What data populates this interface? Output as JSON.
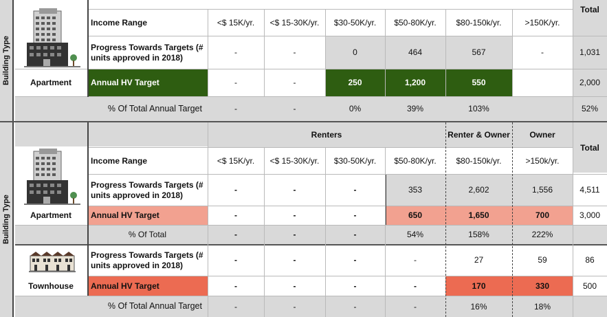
{
  "table1": {
    "building_type_label": "Building Type",
    "total_header": "Total",
    "income_label": "Income Range",
    "income_ranges": [
      "<$ 15K/yr.",
      "<$ 15-30K/yr.",
      "$30-50K/yr.",
      "$50-80K/yr.",
      "$80-150k/yr.",
      ">150K/yr."
    ],
    "progress_label": "Progress Towards Targets (# units approved in 2018)",
    "progress_values": [
      "-",
      "-",
      "0",
      "464",
      "567",
      "-"
    ],
    "progress_total": "1,031",
    "building_name": "Apartment",
    "target_label": "Annual HV Target",
    "target_values": [
      "-",
      "-",
      "250",
      "1,200",
      "550",
      ""
    ],
    "target_total": "2,000",
    "pct_label": "% Of Total Annual Target",
    "pct_values": [
      "-",
      "-",
      "0%",
      "39%",
      "103%",
      ""
    ],
    "pct_total": "52%",
    "colors": {
      "target_fill": "#2e5d11",
      "shade": "#d9d9d9"
    }
  },
  "table2": {
    "building_type_label": "Building Type",
    "total_header": "Total",
    "group_headers": {
      "renters": "Renters",
      "renter_owner": "Renter & Owner",
      "owner": "Owner"
    },
    "income_label": "Income Range",
    "income_ranges": [
      "<$ 15K/yr.",
      "<$ 15-30K/yr.",
      "$30-50K/yr.",
      "$50-80K/yr.",
      "$80-150k/yr.",
      ">150k/yr."
    ],
    "apartment": {
      "progress_label": "Progress Towards Targets (# units approved in 2018)",
      "progress_values": [
        "-",
        "-",
        "-",
        "353",
        "2,602",
        "1,556"
      ],
      "progress_total": "4,511",
      "building_name": "Apartment",
      "target_label": "Annual HV Target",
      "target_values": [
        "-",
        "-",
        "-",
        "650",
        "1,650",
        "700"
      ],
      "target_total": "3,000",
      "pct_label": "% Of Total",
      "pct_values": [
        "-",
        "-",
        "-",
        "54%",
        "158%",
        "222%"
      ]
    },
    "townhouse": {
      "progress_label": "Progress Towards Targets (# units approved in 2018)",
      "progress_values": [
        "-",
        "-",
        "-",
        "-",
        "27",
        "59"
      ],
      "progress_total": "86",
      "building_name": "Townhouse",
      "target_label": "Annual HV Target",
      "target_values": [
        "-",
        "-",
        "-",
        "-",
        "170",
        "330"
      ],
      "target_total": "500",
      "pct_label": "% Of Total Annual Target",
      "pct_values": [
        "-",
        "-",
        "-",
        "-",
        "16%",
        "18%"
      ]
    },
    "colors": {
      "apartment_target_fill": "#f2a190",
      "townhouse_target_fill": "#ec6b52"
    }
  }
}
